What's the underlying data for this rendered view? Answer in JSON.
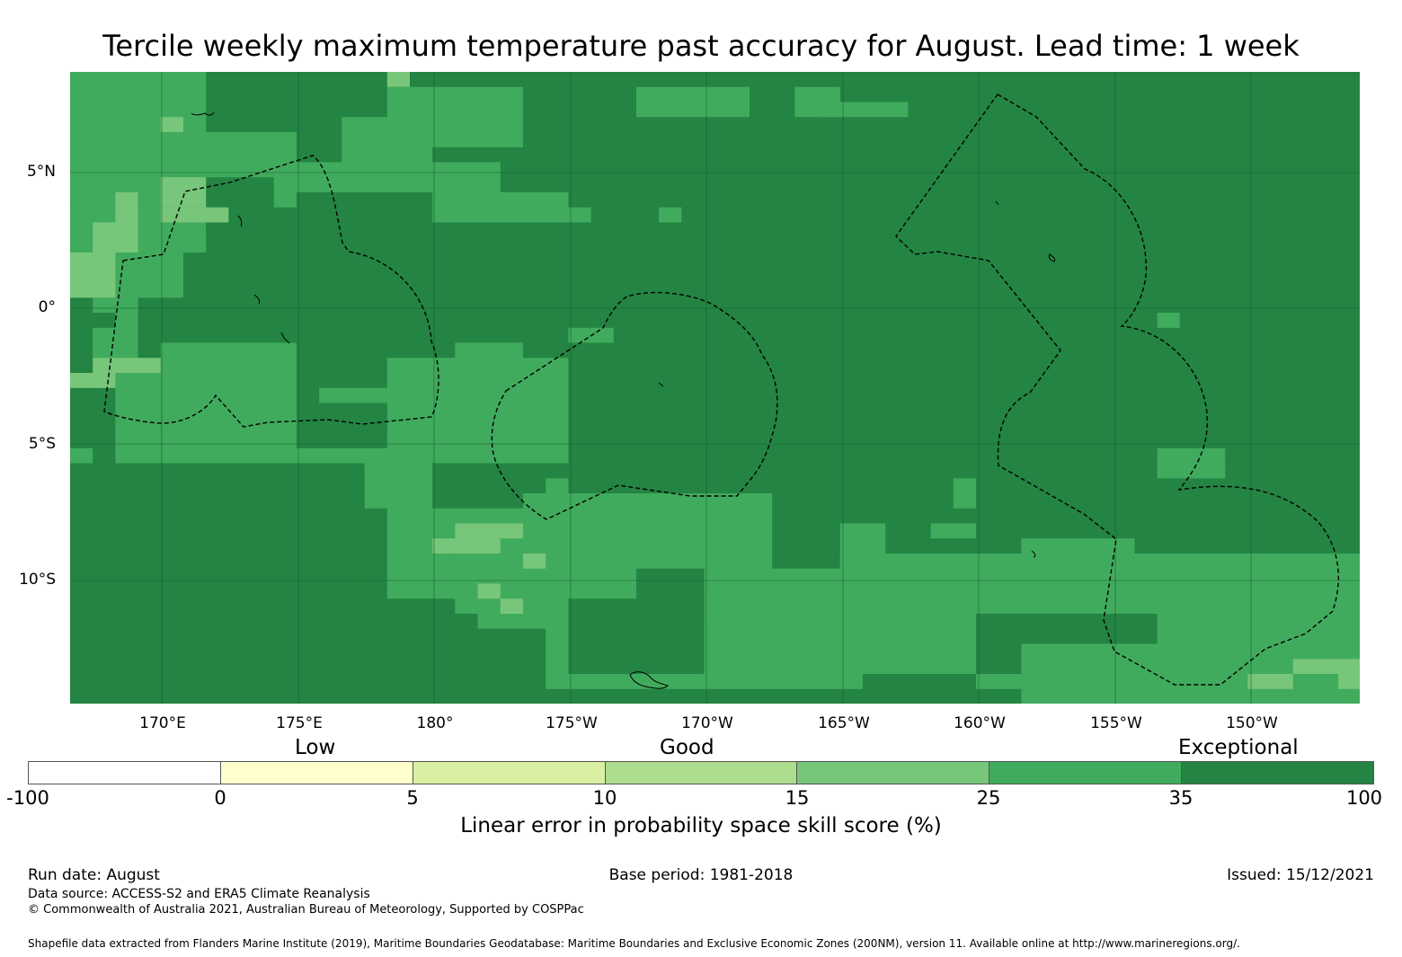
{
  "title": "Tercile weekly maximum temperature past accuracy for August. Lead time: 1 week",
  "map": {
    "lat_labels": [
      "5°N",
      "0°",
      "5°S",
      "10°S"
    ],
    "lon_labels": [
      "170°E",
      "175°E",
      "180°",
      "175°W",
      "170°W",
      "165°W",
      "160°W",
      "155°W",
      "150°W"
    ],
    "colors": {
      "exceptional_high": "#238443",
      "exceptional_low": "#41ab5d",
      "good_high": "#78c679",
      "boundary_line": "#000000"
    }
  },
  "colorbar": {
    "categories": [
      "Low",
      "Good",
      "Exceptional"
    ],
    "ticks": [
      "-100",
      "0",
      "5",
      "10",
      "15",
      "25",
      "35",
      "100"
    ],
    "colors": [
      "#ffffff",
      "#ffffcc",
      "#d9f0a3",
      "#addd8e",
      "#78c679",
      "#41ab5d",
      "#238443"
    ],
    "label": "Linear error in probability space skill score (%)"
  },
  "footer": {
    "run_date": "Run date: August",
    "base_period": "Base period: 1981-2018",
    "issued": "Issued: 15/12/2021",
    "data_source": "Data source: ACCESS-S2 and ERA5 Climate Reanalysis",
    "copyright": "© Commonwealth of Australia 2021, Australian Bureau of Meteorology, Supported by COSPPac",
    "shapefile": "Shapefile data extracted from Flanders Marine Institute (2019), Maritime Boundaries Geodatabase: Maritime Boundaries and Exclusive Economic Zones (200NM), version 11. Available online at http://www.marineregions.org/."
  }
}
